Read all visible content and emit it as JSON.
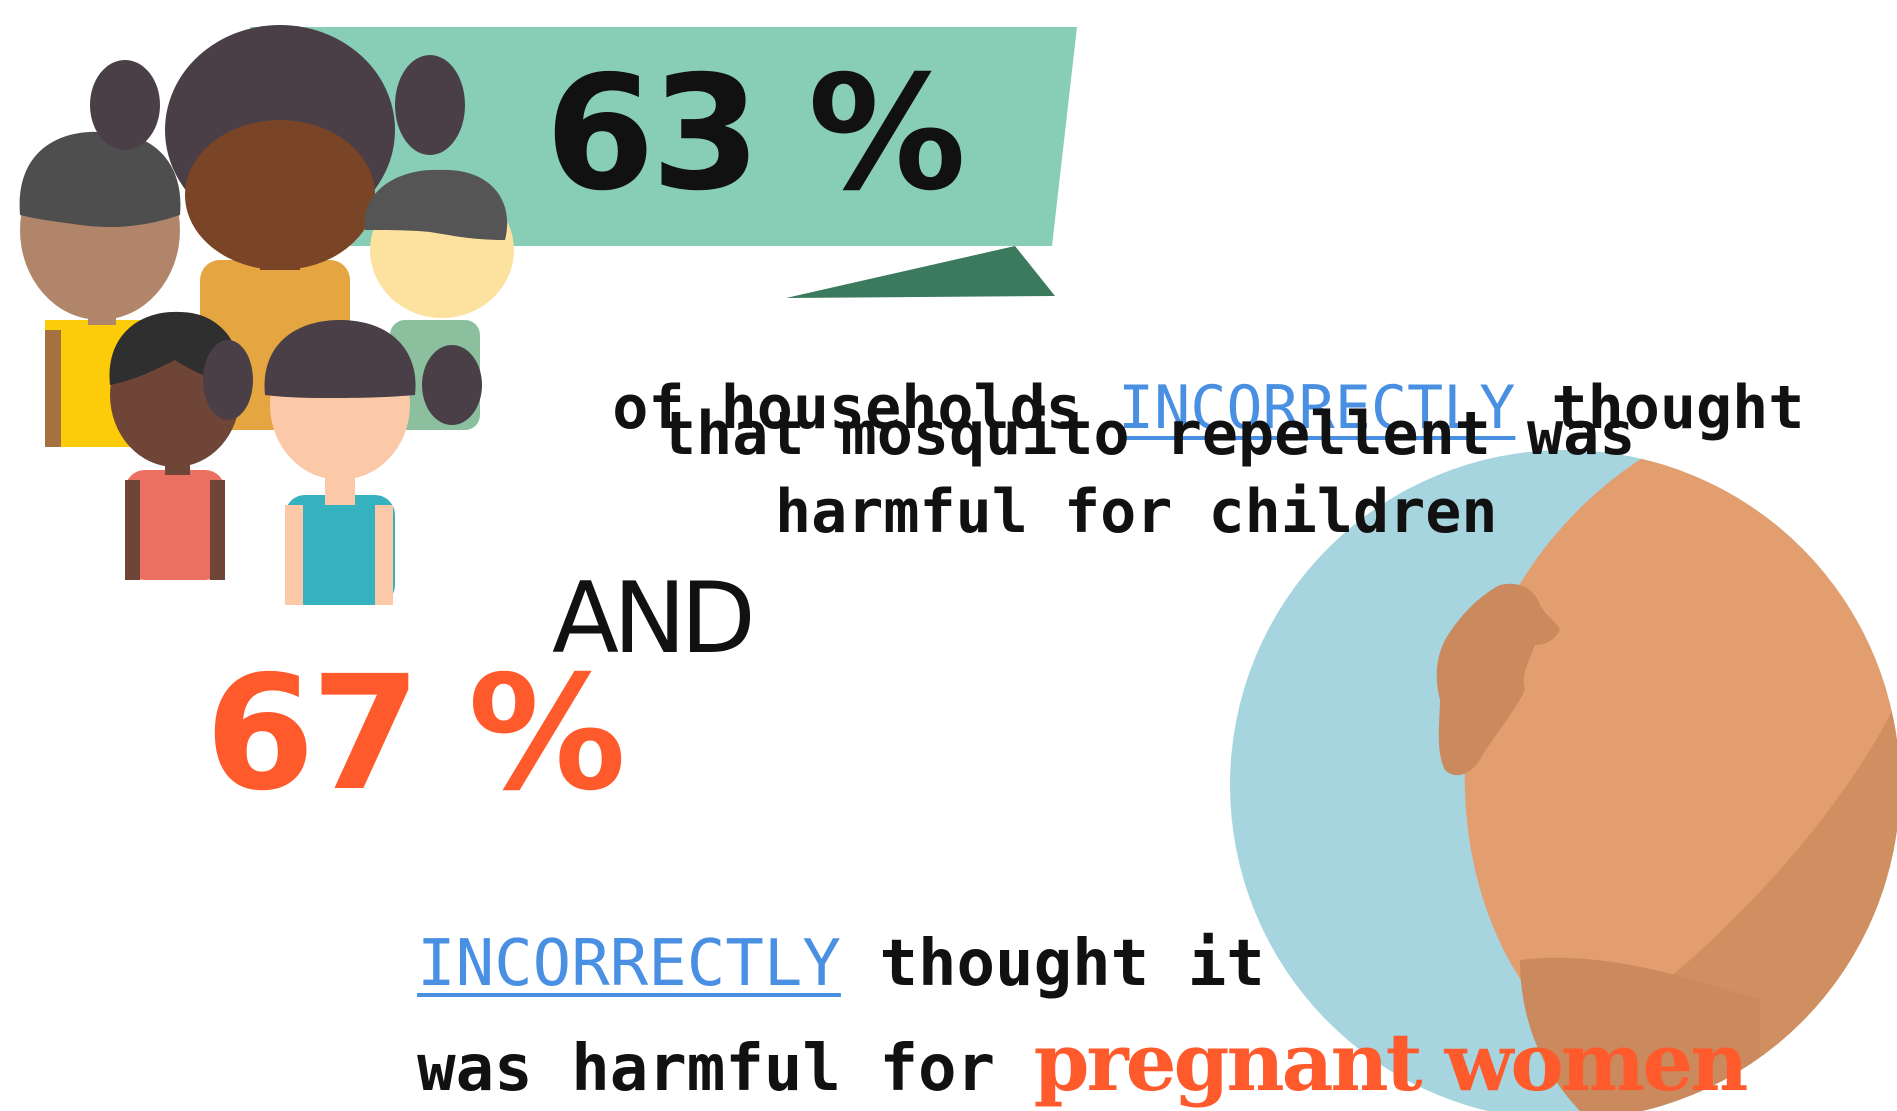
{
  "stat1": {
    "value": "63 %"
  },
  "text1": {
    "line1_pre": "of households ",
    "line1_highlight": "INCORRECTLY",
    "line1_post": " thought",
    "line2": "that mosquito repellent was",
    "line3": "harmful for children"
  },
  "connector": "AND",
  "stat2": {
    "value": "67 %"
  },
  "text2": {
    "line1_highlight": "INCORRECTLY",
    "line1_post": " thought it",
    "line2_pre": "was harmful for ",
    "line2_emphasis": "pregnant women"
  },
  "colors": {
    "banner": "#88CDB6",
    "banner_fold": "#3B7A5C",
    "highlight_blue": "#4A90E2",
    "accent_orange": "#FF5A2C",
    "circle_blue": "#A6D4DF",
    "skin_belly": "#E29E6E",
    "skin_hand": "#CA8A5E"
  },
  "icons": [
    "children-group-icon",
    "pregnant-belly-icon"
  ]
}
